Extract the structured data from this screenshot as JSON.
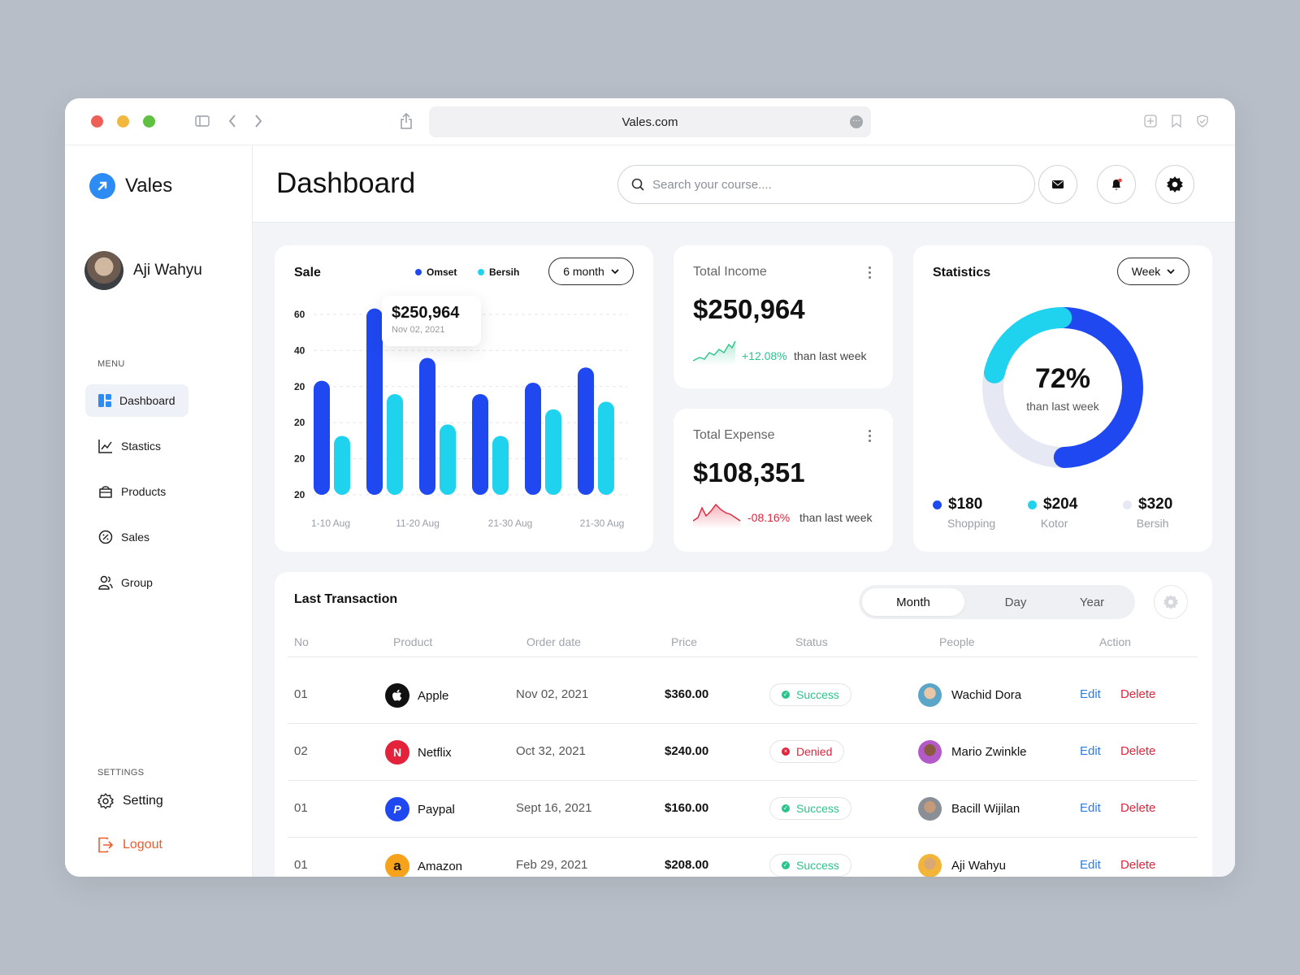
{
  "browser": {
    "url": "Vales.com"
  },
  "sidebar": {
    "app_name": "Vales",
    "user_name": "Aji Wahyu",
    "menu_label": "MENU",
    "items": [
      {
        "label": "Dashboard",
        "icon": "dashboard-icon",
        "active": true
      },
      {
        "label": "Stastics",
        "icon": "chart-line-icon"
      },
      {
        "label": "Products",
        "icon": "bag-icon"
      },
      {
        "label": "Sales",
        "icon": "badge-percent-icon"
      },
      {
        "label": "Group",
        "icon": "users-icon"
      }
    ],
    "settings_label": "SETTINGS",
    "setting": "Setting",
    "logout": "Logout"
  },
  "header": {
    "title": "Dashboard",
    "search_placeholder": "Search your course...."
  },
  "sale": {
    "title": "Sale",
    "legend": [
      "Omset",
      "Bersih"
    ],
    "period": "6 month",
    "tooltip_value": "$250,964",
    "tooltip_date": "Nov 02, 2021"
  },
  "chart_data": {
    "type": "bar",
    "ytick_labels": [
      "60",
      "40",
      "20",
      "20",
      "20",
      "20"
    ],
    "xtick_labels": [
      "1-10 Aug",
      "11-20 Aug",
      "21-30 Aug",
      "21-30 Aug"
    ],
    "series": [
      {
        "name": "Omset",
        "color": "#1f48f0",
        "values": [
          0.6,
          0.98,
          0.72,
          0.53,
          0.59,
          0.67
        ]
      },
      {
        "name": "Bersih",
        "color": "#1fd2ee",
        "values": [
          0.31,
          0.53,
          0.37,
          0.31,
          0.45,
          0.49
        ]
      }
    ],
    "ylim": [
      0,
      1
    ]
  },
  "income": {
    "label": "Total Income",
    "value": "$250,964",
    "change": "+12.08%",
    "note": "than last week",
    "color": "#2bc48a"
  },
  "expense": {
    "label": "Total Expense",
    "value": "$108,351",
    "change": "-08.16%",
    "note": "than last week",
    "color": "#e2233b"
  },
  "statistics": {
    "title": "Statistics",
    "period": "Week",
    "percent": "72%",
    "percent_label": "than last week",
    "donut": [
      {
        "color": "#1f48f0",
        "fraction": 0.5
      },
      {
        "color": "#1fd2ee",
        "fraction": 0.22
      },
      {
        "color": "#e6e8f3",
        "fraction": 0.28
      }
    ],
    "legend": [
      {
        "value": "$180",
        "label": "Shopping",
        "color": "#1f48f0"
      },
      {
        "value": "$204",
        "label": "Kotor",
        "color": "#1fd2ee"
      },
      {
        "value": "$320",
        "label": "Bersih",
        "color": "#e6e8f3"
      }
    ]
  },
  "transactions": {
    "title": "Last Transaction",
    "tabs": [
      "Month",
      "Day",
      "Year"
    ],
    "columns": [
      "No",
      "Product",
      "Order date",
      "Price",
      "Status",
      "People",
      "Action"
    ],
    "edit_label": "Edit",
    "delete_label": "Delete",
    "rows": [
      {
        "no": "01",
        "product": "Apple",
        "brand_color": "#111111",
        "brand_glyph": "",
        "date": "Nov 02, 2021",
        "price": "$360.00",
        "status": "Success",
        "status_kind": "success",
        "person": "Wachid Dora"
      },
      {
        "no": "02",
        "product": "Netflix",
        "brand_color": "#e2233b",
        "brand_glyph": "N",
        "date": "Oct 32, 2021",
        "price": "$240.00",
        "status": "Denied",
        "status_kind": "denied",
        "person": "Mario Zwinkle"
      },
      {
        "no": "01",
        "product": "Paypal",
        "brand_color": "#1f48f0",
        "brand_glyph": "P",
        "date": "Sept 16, 2021",
        "price": "$160.00",
        "status": "Success",
        "status_kind": "success",
        "person": "Bacill Wijilan"
      },
      {
        "no": "01",
        "product": "Amazon",
        "brand_color": "#f6a21b",
        "brand_glyph": "a",
        "date": "Feb 29, 2021",
        "price": "$208.00",
        "status": "Success",
        "status_kind": "success",
        "person": "Aji Wahyu"
      }
    ]
  }
}
